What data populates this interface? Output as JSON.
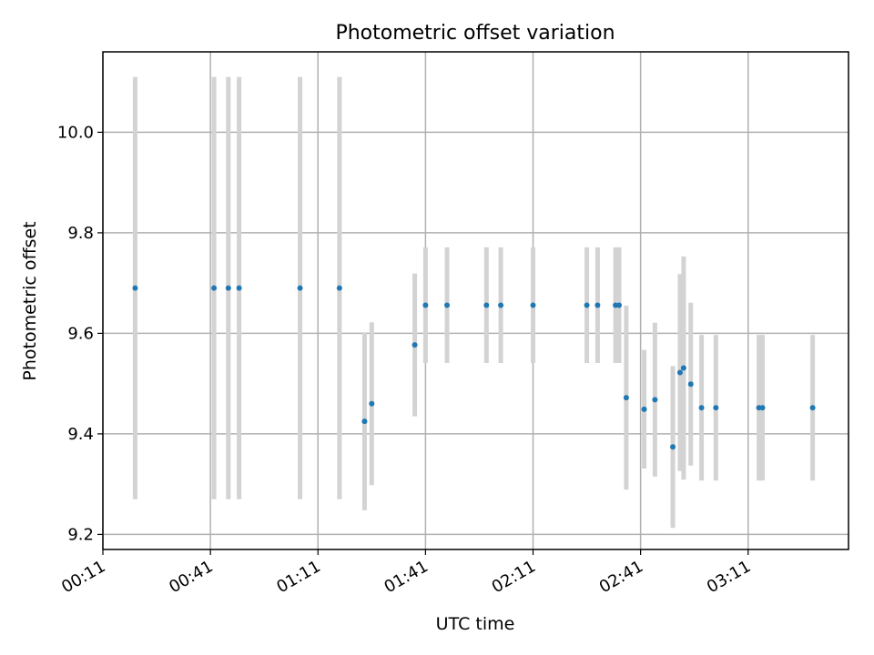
{
  "chart_data": {
    "type": "scatter",
    "title": "Photometric offset variation",
    "xlabel": "UTC time",
    "ylabel": "Photometric offset",
    "x_ticks": [
      "00:11",
      "00:41",
      "01:11",
      "01:41",
      "02:11",
      "02:41",
      "03:11"
    ],
    "xlim": [
      "00:11",
      "03:39"
    ],
    "ylim": [
      9.17,
      10.16
    ],
    "y_ticks": [
      9.2,
      9.4,
      9.6,
      9.8,
      10.0
    ],
    "grid": true,
    "colors": {
      "point": "#1f77b4",
      "error_bar": "#d3d3d3"
    },
    "series": [
      {
        "points": [
          {
            "x": "00:20",
            "y": 9.69,
            "err": 0.42
          },
          {
            "x": "00:42",
            "y": 9.69,
            "err": 0.42
          },
          {
            "x": "00:46",
            "y": 9.69,
            "err": 0.42
          },
          {
            "x": "00:49",
            "y": 9.69,
            "err": 0.42
          },
          {
            "x": "01:06",
            "y": 9.69,
            "err": 0.42
          },
          {
            "x": "01:17",
            "y": 9.69,
            "err": 0.42
          },
          {
            "x": "01:24",
            "y": 9.425,
            "err": 0.177
          },
          {
            "x": "01:26",
            "y": 9.46,
            "err": 0.162
          },
          {
            "x": "01:38",
            "y": 9.577,
            "err": 0.142
          },
          {
            "x": "01:41",
            "y": 9.656,
            "err": 0.115
          },
          {
            "x": "01:47",
            "y": 9.656,
            "err": 0.115
          },
          {
            "x": "01:58",
            "y": 9.656,
            "err": 0.115
          },
          {
            "x": "02:02",
            "y": 9.656,
            "err": 0.115
          },
          {
            "x": "02:11",
            "y": 9.656,
            "err": 0.115
          },
          {
            "x": "02:26",
            "y": 9.656,
            "err": 0.115
          },
          {
            "x": "02:29",
            "y": 9.656,
            "err": 0.115
          },
          {
            "x": "02:34",
            "y": 9.656,
            "err": 0.115
          },
          {
            "x": "02:35",
            "y": 9.656,
            "err": 0.115
          },
          {
            "x": "02:37",
            "y": 9.472,
            "err": 0.183
          },
          {
            "x": "02:42",
            "y": 9.449,
            "err": 0.118
          },
          {
            "x": "02:45",
            "y": 9.468,
            "err": 0.153
          },
          {
            "x": "02:50",
            "y": 9.374,
            "err": 0.161
          },
          {
            "x": "02:52",
            "y": 9.522,
            "err": 0.196
          },
          {
            "x": "02:53",
            "y": 9.531,
            "err": 0.222
          },
          {
            "x": "02:55",
            "y": 9.499,
            "err": 0.162
          },
          {
            "x": "02:58",
            "y": 9.452,
            "err": 0.145
          },
          {
            "x": "03:02",
            "y": 9.452,
            "err": 0.145
          },
          {
            "x": "03:14",
            "y": 9.452,
            "err": 0.145
          },
          {
            "x": "03:15",
            "y": 9.452,
            "err": 0.145
          },
          {
            "x": "03:29",
            "y": 9.452,
            "err": 0.145
          }
        ]
      }
    ]
  }
}
